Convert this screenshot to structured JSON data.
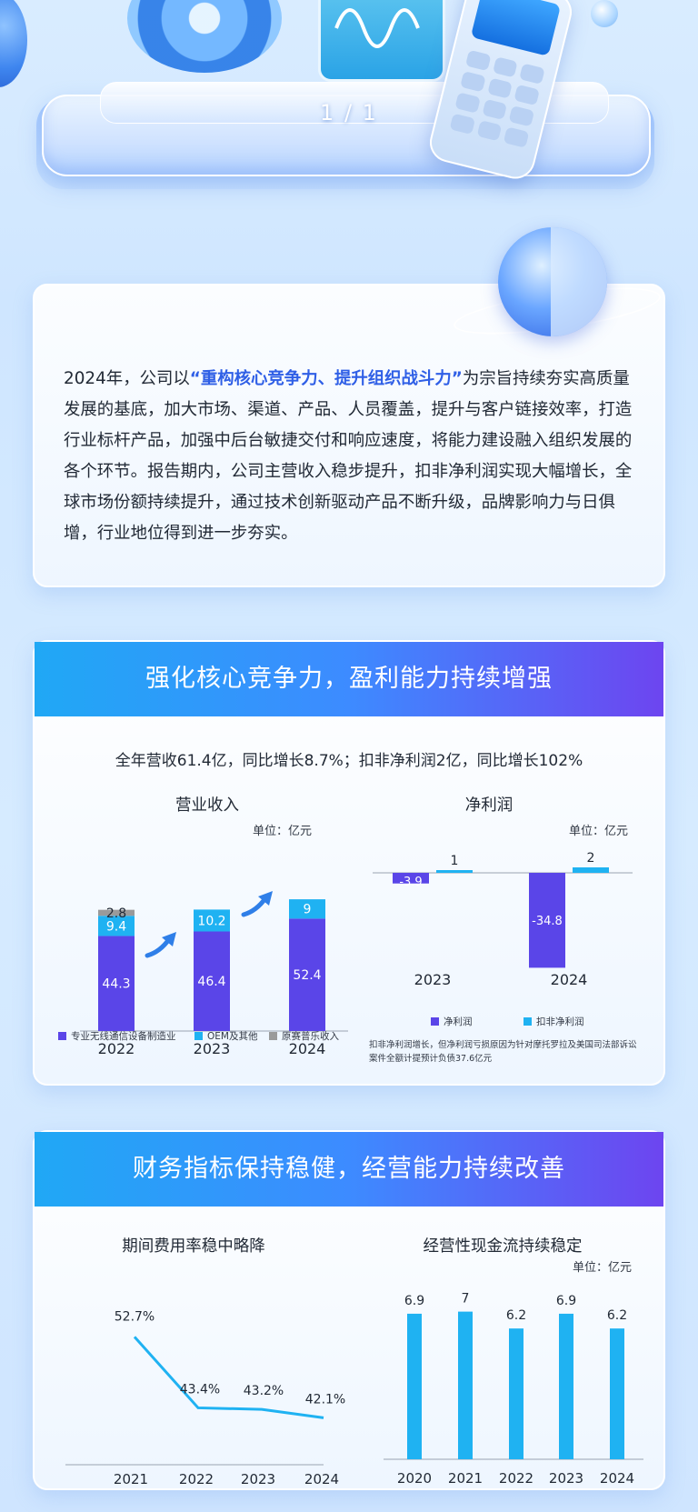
{
  "hero": {
    "page_indicator": "1 / 1"
  },
  "intro": {
    "prefix": "2024年，公司以",
    "highlight": "“重构核心竞争力、提升组织战斗力”",
    "body": "为宗旨持续夯实高质量发展的基底，加大市场、渠道、产品、人员覆盖，提升与客户链接效率，打造行业标杆产品，加强中后台敏捷交付和响应速度，将能力建设融入组织发展的各个环节。报告期内，公司主营收入稳步提升，扣非净利润实现大幅增长，全球市场份额持续提升，通过技术创新驱动产品不断升级，品牌影响力与日俱增，行业地位得到进一步夯实。"
  },
  "section1": {
    "header": "强化核心竞争力，盈利能力持续增强",
    "summary": "全年营收61.4亿，同比增长8.7%；扣非净利润2亿，同比增长102%",
    "revenue_title": "营业收入",
    "revenue_unit": "单位：亿元",
    "profit_title": "净利润",
    "profit_unit": "单位：亿元",
    "revenue_legend": [
      "专业无线通信设备制造业",
      "OEM及其他",
      "原赛普乐收入"
    ],
    "profit_legend": [
      "净利润",
      "扣非净利润"
    ],
    "footnote_1": "扣非净利润增长，但净利润亏损原因为针对摩托罗拉及美国司法部诉讼",
    "footnote_2": "案件全额计提预计负债37.6亿元"
  },
  "section2": {
    "header": "财务指标保持稳健，经营能力持续改善",
    "expense_title": "期间费用率稳中略降",
    "cashflow_title": "经营性现金流持续稳定",
    "cashflow_unit": "单位：亿元"
  },
  "chart_data": [
    {
      "type": "bar",
      "title": "营业收入",
      "stacked": true,
      "categories": [
        "2022",
        "2023",
        "2024"
      ],
      "series": [
        {
          "name": "专业无线通信设备制造业",
          "values": [
            44.3,
            46.4,
            52.4
          ]
        },
        {
          "name": "OEM及其他",
          "values": [
            9.4,
            10.2,
            9
          ]
        },
        {
          "name": "原赛普乐收入",
          "values": [
            2.8,
            0,
            0
          ]
        }
      ],
      "colors": [
        "#5a45e8",
        "#1fb2f2",
        "#9a9a9a"
      ],
      "ylabel": "单位：亿元"
    },
    {
      "type": "bar",
      "title": "净利润",
      "categories": [
        "2023",
        "2024"
      ],
      "series": [
        {
          "name": "净利润",
          "values": [
            -3.9,
            -34.8
          ]
        },
        {
          "name": "扣非净利润",
          "values": [
            1,
            2
          ]
        }
      ],
      "colors": [
        "#5a45e8",
        "#1fb2f2"
      ],
      "ylabel": "单位：亿元"
    },
    {
      "type": "line",
      "title": "期间费用率稳中略降",
      "categories": [
        "2021",
        "2022",
        "2023",
        "2024"
      ],
      "values": [
        52.7,
        43.4,
        43.2,
        42.1
      ],
      "labels": [
        "52.7%",
        "43.4%",
        "43.2%",
        "42.1%"
      ],
      "color": "#1fb2f2"
    },
    {
      "type": "bar",
      "title": "经营性现金流持续稳定",
      "categories": [
        "2020",
        "2021",
        "2022",
        "2023",
        "2024"
      ],
      "values": [
        6.9,
        7,
        6.2,
        6.9,
        6.2
      ],
      "ylabel": "单位：亿元",
      "color": "#1fb2f2"
    }
  ]
}
